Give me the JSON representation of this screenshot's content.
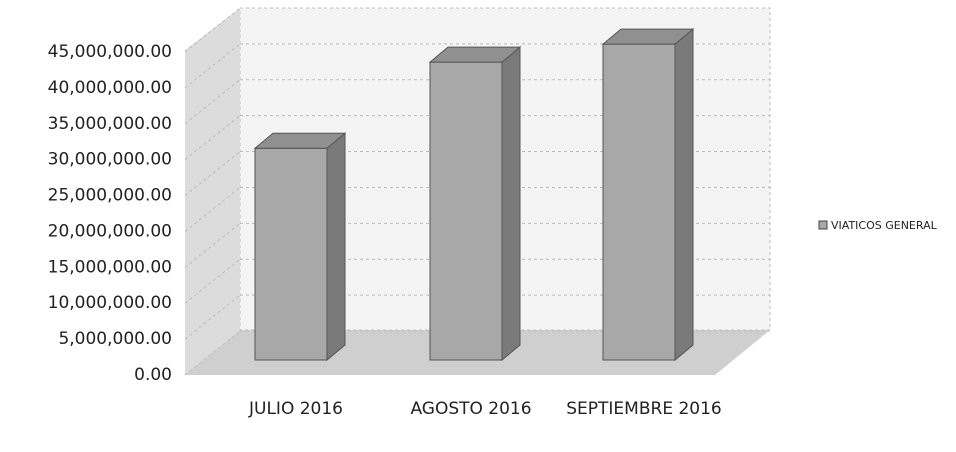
{
  "chart_data": {
    "type": "bar3d",
    "categories": [
      "JULIO 2016",
      "AGOSTO 2016",
      "SEPTIEMBRE 2016"
    ],
    "series": [
      {
        "name": "VIATICOS GENERAL",
        "color": "#a8a8a8",
        "values": [
          29500000,
          41500000,
          44000000
        ]
      }
    ],
    "ylim": [
      0,
      45000000
    ],
    "yticks": [
      {
        "value": 0,
        "label": "0.00"
      },
      {
        "value": 5000000,
        "label": "5,000,000.00"
      },
      {
        "value": 10000000,
        "label": "10,000,000.00"
      },
      {
        "value": 15000000,
        "label": "15,000,000.00"
      },
      {
        "value": 20000000,
        "label": "20,000,000.00"
      },
      {
        "value": 25000000,
        "label": "25,000,000.00"
      },
      {
        "value": 30000000,
        "label": "30,000,000.00"
      },
      {
        "value": 35000000,
        "label": "35,000,000.00"
      },
      {
        "value": 40000000,
        "label": "40,000,000.00"
      },
      {
        "value": 45000000,
        "label": "45,000,000.00"
      }
    ],
    "grid": true,
    "legend": "right"
  }
}
